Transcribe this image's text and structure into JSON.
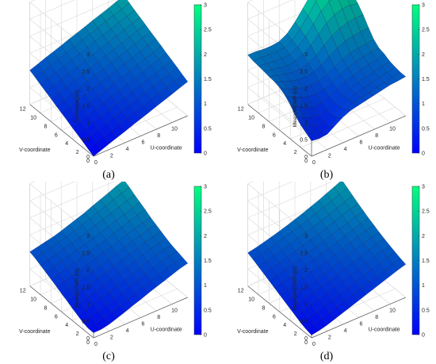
{
  "colormap": {
    "low": "#0000ff",
    "high": "#00ff80"
  },
  "panels": [
    {
      "caption": "(a)",
      "chart_data": {
        "type": "surface",
        "zlabel": "TrueValue(β2)",
        "xlabel": "U-coordinate",
        "ylabel": "V-coordinate",
        "zlim": [
          0,
          3
        ],
        "u_ticks": [
          "0",
          "2",
          "4",
          "6",
          "8",
          "10"
        ],
        "v_ticks": [
          "0",
          "2",
          "4",
          "6",
          "8",
          "10",
          "12"
        ],
        "z_ticks": [
          "0",
          "0.5",
          "1",
          "1.5",
          "2",
          "2.5",
          "3"
        ],
        "colorbar_ticks": [
          "0",
          "0.5",
          "1",
          "1.5",
          "2",
          "2.5",
          "3"
        ],
        "u": [
          0,
          1,
          2,
          3,
          4,
          5,
          6,
          7,
          8,
          9,
          10,
          11,
          12
        ],
        "v": [
          0,
          1,
          2,
          3,
          4,
          5,
          6,
          7,
          8,
          9,
          10,
          11,
          12
        ],
        "z": [
          [
            0.0,
            0.08,
            0.17,
            0.25,
            0.33,
            0.42,
            0.5,
            0.58,
            0.67,
            0.75,
            0.83,
            0.92,
            1.0
          ],
          [
            0.08,
            0.17,
            0.25,
            0.33,
            0.42,
            0.5,
            0.58,
            0.67,
            0.75,
            0.83,
            0.92,
            1.0,
            1.08
          ],
          [
            0.17,
            0.25,
            0.33,
            0.42,
            0.5,
            0.58,
            0.67,
            0.75,
            0.83,
            0.92,
            1.0,
            1.08,
            1.17
          ],
          [
            0.25,
            0.33,
            0.42,
            0.5,
            0.58,
            0.67,
            0.75,
            0.83,
            0.92,
            1.0,
            1.08,
            1.17,
            1.25
          ],
          [
            0.33,
            0.42,
            0.5,
            0.58,
            0.67,
            0.75,
            0.83,
            0.92,
            1.0,
            1.08,
            1.17,
            1.25,
            1.33
          ],
          [
            0.42,
            0.5,
            0.58,
            0.67,
            0.75,
            0.83,
            0.92,
            1.0,
            1.08,
            1.17,
            1.25,
            1.33,
            1.42
          ],
          [
            0.5,
            0.58,
            0.67,
            0.75,
            0.83,
            0.92,
            1.0,
            1.08,
            1.17,
            1.25,
            1.33,
            1.42,
            1.5
          ],
          [
            0.58,
            0.67,
            0.75,
            0.83,
            0.92,
            1.0,
            1.08,
            1.17,
            1.25,
            1.33,
            1.42,
            1.5,
            1.58
          ],
          [
            0.67,
            0.75,
            0.83,
            0.92,
            1.0,
            1.08,
            1.17,
            1.25,
            1.33,
            1.42,
            1.5,
            1.58,
            1.67
          ],
          [
            0.75,
            0.83,
            0.92,
            1.0,
            1.08,
            1.17,
            1.25,
            1.33,
            1.42,
            1.5,
            1.58,
            1.67,
            1.75
          ],
          [
            0.83,
            0.92,
            1.0,
            1.08,
            1.17,
            1.25,
            1.33,
            1.42,
            1.5,
            1.58,
            1.67,
            1.75,
            1.83
          ],
          [
            0.92,
            1.0,
            1.08,
            1.17,
            1.25,
            1.33,
            1.42,
            1.5,
            1.58,
            1.67,
            1.75,
            1.83,
            1.92
          ],
          [
            1.0,
            1.08,
            1.17,
            1.25,
            1.33,
            1.42,
            1.5,
            1.58,
            1.67,
            1.75,
            1.83,
            1.92,
            2.0
          ]
        ]
      }
    },
    {
      "caption": "(b)",
      "chart_data": {
        "type": "surface",
        "zlabel": "Mean(MGWR-β2)",
        "xlabel": "U-coordinate",
        "ylabel": "V-coordinate",
        "zlim": [
          0,
          3
        ],
        "u_ticks": [
          "0",
          "2",
          "4",
          "6",
          "8",
          "10"
        ],
        "v_ticks": [
          "0",
          "2",
          "4",
          "6",
          "8",
          "10",
          "12"
        ],
        "z_ticks": [
          "0",
          "0.5",
          "1",
          "1.5",
          "2",
          "2.5",
          "3"
        ],
        "colorbar_ticks": [
          "0",
          "0.5",
          "1",
          "1.5",
          "2",
          "2.5",
          "3"
        ],
        "u": [
          0,
          1,
          2,
          3,
          4,
          5,
          6,
          7,
          8,
          9,
          10,
          11,
          12
        ],
        "v": [
          0,
          1,
          2,
          3,
          4,
          5,
          6,
          7,
          8,
          9,
          10,
          11,
          12
        ],
        "z": [
          [
            0.45,
            0.42,
            0.45,
            0.6,
            0.75,
            0.85,
            0.9,
            0.95,
            1.0,
            1.05,
            1.1,
            1.12,
            1.15
          ],
          [
            0.55,
            0.45,
            0.4,
            0.45,
            0.6,
            0.75,
            0.85,
            0.9,
            0.95,
            1.0,
            1.05,
            1.1,
            1.15
          ],
          [
            0.65,
            0.52,
            0.45,
            0.45,
            0.55,
            0.7,
            0.82,
            0.9,
            0.97,
            1.02,
            1.07,
            1.12,
            1.18
          ],
          [
            0.8,
            0.65,
            0.55,
            0.52,
            0.58,
            0.7,
            0.82,
            0.92,
            1.0,
            1.06,
            1.12,
            1.17,
            1.22
          ],
          [
            1.0,
            0.85,
            0.72,
            0.65,
            0.68,
            0.75,
            0.88,
            1.0,
            1.08,
            1.15,
            1.2,
            1.25,
            1.3
          ],
          [
            1.15,
            1.0,
            0.9,
            0.82,
            0.8,
            0.85,
            0.95,
            1.08,
            1.18,
            1.25,
            1.3,
            1.33,
            1.35
          ],
          [
            1.25,
            1.12,
            1.02,
            0.95,
            0.92,
            0.95,
            1.05,
            1.18,
            1.3,
            1.38,
            1.42,
            1.45,
            1.48
          ],
          [
            1.3,
            1.2,
            1.12,
            1.05,
            1.05,
            1.1,
            1.2,
            1.35,
            1.5,
            1.6,
            1.65,
            1.68,
            1.7
          ],
          [
            1.32,
            1.25,
            1.2,
            1.15,
            1.15,
            1.22,
            1.35,
            1.55,
            1.72,
            1.85,
            1.92,
            1.95,
            1.95
          ],
          [
            1.35,
            1.3,
            1.25,
            1.22,
            1.25,
            1.35,
            1.52,
            1.75,
            1.98,
            2.12,
            2.2,
            2.2,
            2.15
          ],
          [
            1.38,
            1.35,
            1.32,
            1.3,
            1.32,
            1.45,
            1.65,
            1.92,
            2.2,
            2.38,
            2.45,
            2.4,
            2.3
          ],
          [
            1.4,
            1.4,
            1.38,
            1.38,
            1.4,
            1.52,
            1.75,
            2.05,
            2.35,
            2.55,
            2.62,
            2.55,
            2.4
          ],
          [
            1.45,
            1.45,
            1.42,
            1.42,
            1.45,
            1.58,
            1.82,
            2.12,
            2.42,
            2.62,
            2.68,
            2.6,
            2.45
          ]
        ]
      }
    },
    {
      "caption": "(c)",
      "chart_data": {
        "type": "surface",
        "zlabel": "Mean(GTWR-β2)",
        "xlabel": "U-coordinate",
        "ylabel": "V-coordinate",
        "zlim": [
          0,
          3
        ],
        "u_ticks": [
          "0",
          "2",
          "4",
          "6",
          "8",
          "10"
        ],
        "v_ticks": [
          "0",
          "2",
          "4",
          "6",
          "8",
          "10",
          "12"
        ],
        "z_ticks": [
          "0",
          "0.5",
          "1",
          "1.5",
          "2",
          "2.5",
          "3"
        ],
        "colorbar_ticks": [
          "0",
          "0.5",
          "1",
          "1.5",
          "2",
          "2.5",
          "3"
        ],
        "u": [
          0,
          1,
          2,
          3,
          4,
          5,
          6,
          7,
          8,
          9,
          10,
          11,
          12
        ],
        "v": [
          0,
          1,
          2,
          3,
          4,
          5,
          6,
          7,
          8,
          9,
          10,
          11,
          12
        ],
        "z": [
          [
            0.15,
            0.15,
            0.2,
            0.28,
            0.36,
            0.45,
            0.53,
            0.62,
            0.7,
            0.78,
            0.86,
            0.94,
            1.0
          ],
          [
            0.15,
            0.2,
            0.27,
            0.35,
            0.43,
            0.52,
            0.6,
            0.68,
            0.77,
            0.85,
            0.93,
            1.0,
            1.05
          ],
          [
            0.2,
            0.27,
            0.34,
            0.42,
            0.5,
            0.58,
            0.67,
            0.75,
            0.83,
            0.92,
            1.0,
            1.06,
            1.1
          ],
          [
            0.28,
            0.35,
            0.42,
            0.49,
            0.57,
            0.65,
            0.74,
            0.82,
            0.9,
            0.98,
            1.06,
            1.12,
            1.15
          ],
          [
            0.36,
            0.43,
            0.5,
            0.57,
            0.64,
            0.72,
            0.8,
            0.89,
            0.97,
            1.05,
            1.12,
            1.18,
            1.22
          ],
          [
            0.45,
            0.52,
            0.58,
            0.65,
            0.72,
            0.79,
            0.87,
            0.96,
            1.04,
            1.12,
            1.19,
            1.25,
            1.3
          ],
          [
            0.53,
            0.6,
            0.67,
            0.74,
            0.8,
            0.87,
            0.95,
            1.03,
            1.11,
            1.19,
            1.26,
            1.33,
            1.38
          ],
          [
            0.62,
            0.68,
            0.75,
            0.82,
            0.89,
            0.96,
            1.03,
            1.1,
            1.18,
            1.26,
            1.34,
            1.41,
            1.46
          ],
          [
            0.7,
            0.77,
            0.83,
            0.9,
            0.97,
            1.04,
            1.11,
            1.18,
            1.26,
            1.34,
            1.42,
            1.5,
            1.56
          ],
          [
            0.78,
            0.85,
            0.92,
            0.98,
            1.05,
            1.12,
            1.19,
            1.26,
            1.34,
            1.42,
            1.5,
            1.58,
            1.65
          ],
          [
            0.86,
            0.93,
            1.0,
            1.06,
            1.12,
            1.19,
            1.26,
            1.34,
            1.42,
            1.5,
            1.58,
            1.67,
            1.74
          ],
          [
            0.94,
            1.0,
            1.06,
            1.12,
            1.18,
            1.25,
            1.33,
            1.41,
            1.5,
            1.58,
            1.67,
            1.76,
            1.84
          ],
          [
            1.0,
            1.05,
            1.1,
            1.15,
            1.22,
            1.3,
            1.38,
            1.46,
            1.56,
            1.65,
            1.74,
            1.84,
            1.92
          ]
        ]
      }
    },
    {
      "caption": "(d)",
      "chart_data": {
        "type": "surface",
        "zlabel": "Mean(MGTWR-β2)",
        "xlabel": "U-coordinate",
        "ylabel": "V-coordinate",
        "zlim": [
          0,
          3
        ],
        "u_ticks": [
          "0",
          "2",
          "4",
          "6",
          "8",
          "10"
        ],
        "v_ticks": [
          "0",
          "2",
          "4",
          "6",
          "8",
          "10",
          "12"
        ],
        "z_ticks": [
          "0",
          "0.5",
          "1",
          "1.5",
          "2",
          "2.5",
          "3"
        ],
        "colorbar_ticks": [
          "0",
          "0.5",
          "1",
          "1.5",
          "2",
          "2.5",
          "3"
        ],
        "u": [
          0,
          1,
          2,
          3,
          4,
          5,
          6,
          7,
          8,
          9,
          10,
          11,
          12
        ],
        "v": [
          0,
          1,
          2,
          3,
          4,
          5,
          6,
          7,
          8,
          9,
          10,
          11,
          12
        ],
        "z": [
          [
            0.08,
            0.12,
            0.18,
            0.26,
            0.34,
            0.42,
            0.5,
            0.58,
            0.66,
            0.74,
            0.82,
            0.9,
            0.97
          ],
          [
            0.12,
            0.17,
            0.24,
            0.32,
            0.4,
            0.48,
            0.56,
            0.64,
            0.72,
            0.8,
            0.88,
            0.96,
            1.02
          ],
          [
            0.18,
            0.24,
            0.31,
            0.39,
            0.47,
            0.55,
            0.63,
            0.71,
            0.79,
            0.87,
            0.95,
            1.02,
            1.08
          ],
          [
            0.26,
            0.32,
            0.39,
            0.46,
            0.54,
            0.62,
            0.7,
            0.78,
            0.86,
            0.94,
            1.02,
            1.09,
            1.14
          ],
          [
            0.34,
            0.4,
            0.47,
            0.54,
            0.61,
            0.69,
            0.77,
            0.85,
            0.93,
            1.01,
            1.09,
            1.16,
            1.21
          ],
          [
            0.42,
            0.48,
            0.55,
            0.62,
            0.69,
            0.76,
            0.84,
            0.92,
            1.0,
            1.08,
            1.16,
            1.23,
            1.28
          ],
          [
            0.5,
            0.56,
            0.63,
            0.7,
            0.77,
            0.84,
            0.91,
            0.99,
            1.07,
            1.15,
            1.23,
            1.3,
            1.36
          ],
          [
            0.58,
            0.64,
            0.71,
            0.78,
            0.85,
            0.92,
            0.99,
            1.06,
            1.14,
            1.22,
            1.3,
            1.38,
            1.44
          ],
          [
            0.66,
            0.72,
            0.79,
            0.86,
            0.93,
            1.0,
            1.07,
            1.14,
            1.22,
            1.3,
            1.38,
            1.46,
            1.53
          ],
          [
            0.74,
            0.8,
            0.87,
            0.94,
            1.01,
            1.08,
            1.15,
            1.22,
            1.3,
            1.38,
            1.46,
            1.55,
            1.62
          ],
          [
            0.82,
            0.88,
            0.95,
            1.02,
            1.09,
            1.16,
            1.23,
            1.3,
            1.38,
            1.46,
            1.55,
            1.64,
            1.72
          ],
          [
            0.9,
            0.96,
            1.02,
            1.09,
            1.16,
            1.23,
            1.3,
            1.38,
            1.46,
            1.55,
            1.64,
            1.73,
            1.82
          ],
          [
            0.97,
            1.02,
            1.08,
            1.14,
            1.21,
            1.28,
            1.36,
            1.44,
            1.53,
            1.62,
            1.72,
            1.82,
            1.92
          ]
        ]
      }
    }
  ]
}
